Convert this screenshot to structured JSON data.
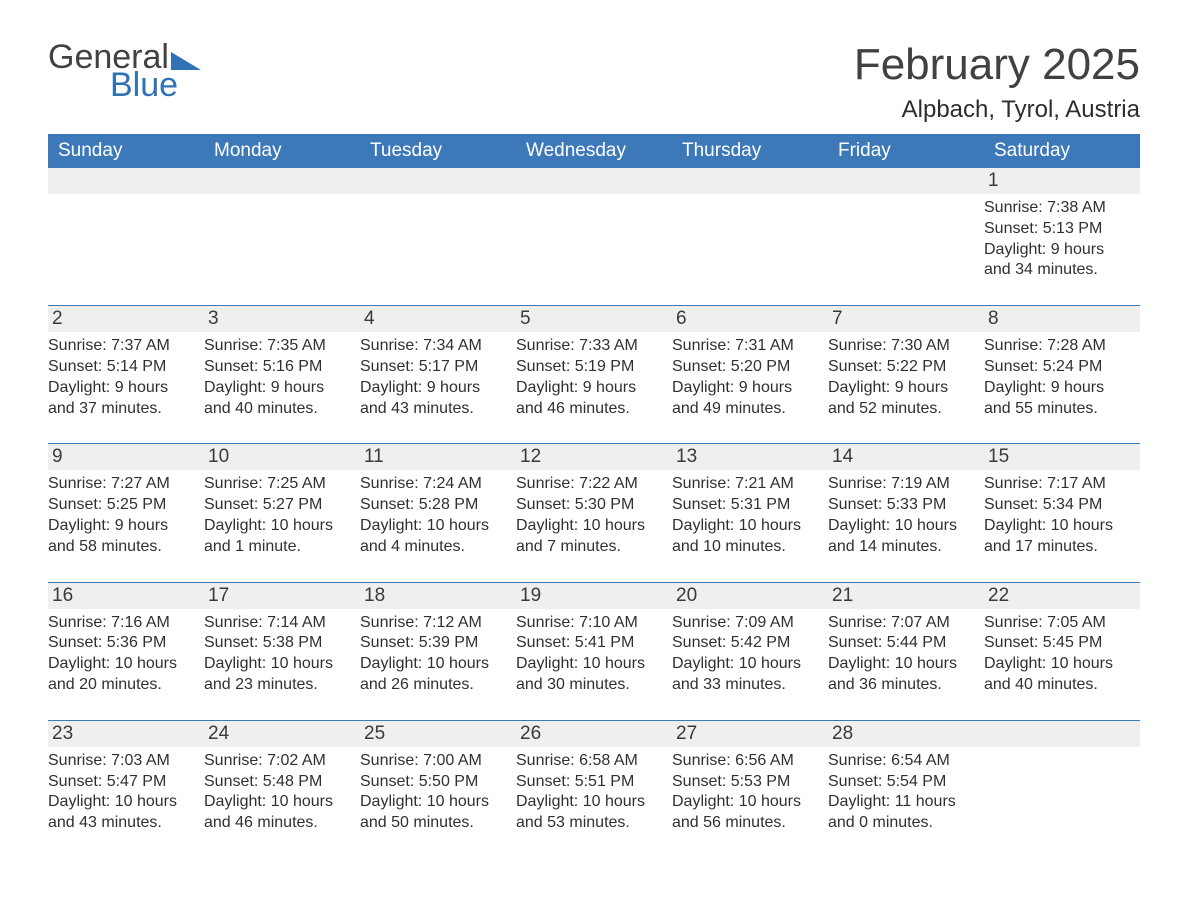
{
  "logo": {
    "word1": "General",
    "word2": "Blue",
    "tri_color": "#3072b5"
  },
  "header": {
    "month_title": "February 2025",
    "location": "Alpbach, Tyrol, Austria"
  },
  "colors": {
    "header_bg": "#3d78b8",
    "header_text": "#ffffff",
    "daybar_bg": "#efefef",
    "daybar_border": "#3d78b8",
    "body_text": "#303030",
    "title_text": "#414141",
    "page_bg": "#ffffff"
  },
  "weekdays": [
    "Sunday",
    "Monday",
    "Tuesday",
    "Wednesday",
    "Thursday",
    "Friday",
    "Saturday"
  ],
  "weeks": [
    [
      {
        "day": "",
        "sunrise": "",
        "sunset": "",
        "daylight": ""
      },
      {
        "day": "",
        "sunrise": "",
        "sunset": "",
        "daylight": ""
      },
      {
        "day": "",
        "sunrise": "",
        "sunset": "",
        "daylight": ""
      },
      {
        "day": "",
        "sunrise": "",
        "sunset": "",
        "daylight": ""
      },
      {
        "day": "",
        "sunrise": "",
        "sunset": "",
        "daylight": ""
      },
      {
        "day": "",
        "sunrise": "",
        "sunset": "",
        "daylight": ""
      },
      {
        "day": "1",
        "sunrise": "Sunrise: 7:38 AM",
        "sunset": "Sunset: 5:13 PM",
        "daylight": "Daylight: 9 hours and 34 minutes."
      }
    ],
    [
      {
        "day": "2",
        "sunrise": "Sunrise: 7:37 AM",
        "sunset": "Sunset: 5:14 PM",
        "daylight": "Daylight: 9 hours and 37 minutes."
      },
      {
        "day": "3",
        "sunrise": "Sunrise: 7:35 AM",
        "sunset": "Sunset: 5:16 PM",
        "daylight": "Daylight: 9 hours and 40 minutes."
      },
      {
        "day": "4",
        "sunrise": "Sunrise: 7:34 AM",
        "sunset": "Sunset: 5:17 PM",
        "daylight": "Daylight: 9 hours and 43 minutes."
      },
      {
        "day": "5",
        "sunrise": "Sunrise: 7:33 AM",
        "sunset": "Sunset: 5:19 PM",
        "daylight": "Daylight: 9 hours and 46 minutes."
      },
      {
        "day": "6",
        "sunrise": "Sunrise: 7:31 AM",
        "sunset": "Sunset: 5:20 PM",
        "daylight": "Daylight: 9 hours and 49 minutes."
      },
      {
        "day": "7",
        "sunrise": "Sunrise: 7:30 AM",
        "sunset": "Sunset: 5:22 PM",
        "daylight": "Daylight: 9 hours and 52 minutes."
      },
      {
        "day": "8",
        "sunrise": "Sunrise: 7:28 AM",
        "sunset": "Sunset: 5:24 PM",
        "daylight": "Daylight: 9 hours and 55 minutes."
      }
    ],
    [
      {
        "day": "9",
        "sunrise": "Sunrise: 7:27 AM",
        "sunset": "Sunset: 5:25 PM",
        "daylight": "Daylight: 9 hours and 58 minutes."
      },
      {
        "day": "10",
        "sunrise": "Sunrise: 7:25 AM",
        "sunset": "Sunset: 5:27 PM",
        "daylight": "Daylight: 10 hours and 1 minute."
      },
      {
        "day": "11",
        "sunrise": "Sunrise: 7:24 AM",
        "sunset": "Sunset: 5:28 PM",
        "daylight": "Daylight: 10 hours and 4 minutes."
      },
      {
        "day": "12",
        "sunrise": "Sunrise: 7:22 AM",
        "sunset": "Sunset: 5:30 PM",
        "daylight": "Daylight: 10 hours and 7 minutes."
      },
      {
        "day": "13",
        "sunrise": "Sunrise: 7:21 AM",
        "sunset": "Sunset: 5:31 PM",
        "daylight": "Daylight: 10 hours and 10 minutes."
      },
      {
        "day": "14",
        "sunrise": "Sunrise: 7:19 AM",
        "sunset": "Sunset: 5:33 PM",
        "daylight": "Daylight: 10 hours and 14 minutes."
      },
      {
        "day": "15",
        "sunrise": "Sunrise: 7:17 AM",
        "sunset": "Sunset: 5:34 PM",
        "daylight": "Daylight: 10 hours and 17 minutes."
      }
    ],
    [
      {
        "day": "16",
        "sunrise": "Sunrise: 7:16 AM",
        "sunset": "Sunset: 5:36 PM",
        "daylight": "Daylight: 10 hours and 20 minutes."
      },
      {
        "day": "17",
        "sunrise": "Sunrise: 7:14 AM",
        "sunset": "Sunset: 5:38 PM",
        "daylight": "Daylight: 10 hours and 23 minutes."
      },
      {
        "day": "18",
        "sunrise": "Sunrise: 7:12 AM",
        "sunset": "Sunset: 5:39 PM",
        "daylight": "Daylight: 10 hours and 26 minutes."
      },
      {
        "day": "19",
        "sunrise": "Sunrise: 7:10 AM",
        "sunset": "Sunset: 5:41 PM",
        "daylight": "Daylight: 10 hours and 30 minutes."
      },
      {
        "day": "20",
        "sunrise": "Sunrise: 7:09 AM",
        "sunset": "Sunset: 5:42 PM",
        "daylight": "Daylight: 10 hours and 33 minutes."
      },
      {
        "day": "21",
        "sunrise": "Sunrise: 7:07 AM",
        "sunset": "Sunset: 5:44 PM",
        "daylight": "Daylight: 10 hours and 36 minutes."
      },
      {
        "day": "22",
        "sunrise": "Sunrise: 7:05 AM",
        "sunset": "Sunset: 5:45 PM",
        "daylight": "Daylight: 10 hours and 40 minutes."
      }
    ],
    [
      {
        "day": "23",
        "sunrise": "Sunrise: 7:03 AM",
        "sunset": "Sunset: 5:47 PM",
        "daylight": "Daylight: 10 hours and 43 minutes."
      },
      {
        "day": "24",
        "sunrise": "Sunrise: 7:02 AM",
        "sunset": "Sunset: 5:48 PM",
        "daylight": "Daylight: 10 hours and 46 minutes."
      },
      {
        "day": "25",
        "sunrise": "Sunrise: 7:00 AM",
        "sunset": "Sunset: 5:50 PM",
        "daylight": "Daylight: 10 hours and 50 minutes."
      },
      {
        "day": "26",
        "sunrise": "Sunrise: 6:58 AM",
        "sunset": "Sunset: 5:51 PM",
        "daylight": "Daylight: 10 hours and 53 minutes."
      },
      {
        "day": "27",
        "sunrise": "Sunrise: 6:56 AM",
        "sunset": "Sunset: 5:53 PM",
        "daylight": "Daylight: 10 hours and 56 minutes."
      },
      {
        "day": "28",
        "sunrise": "Sunrise: 6:54 AM",
        "sunset": "Sunset: 5:54 PM",
        "daylight": "Daylight: 11 hours and 0 minutes."
      },
      {
        "day": "",
        "sunrise": "",
        "sunset": "",
        "daylight": ""
      }
    ]
  ]
}
